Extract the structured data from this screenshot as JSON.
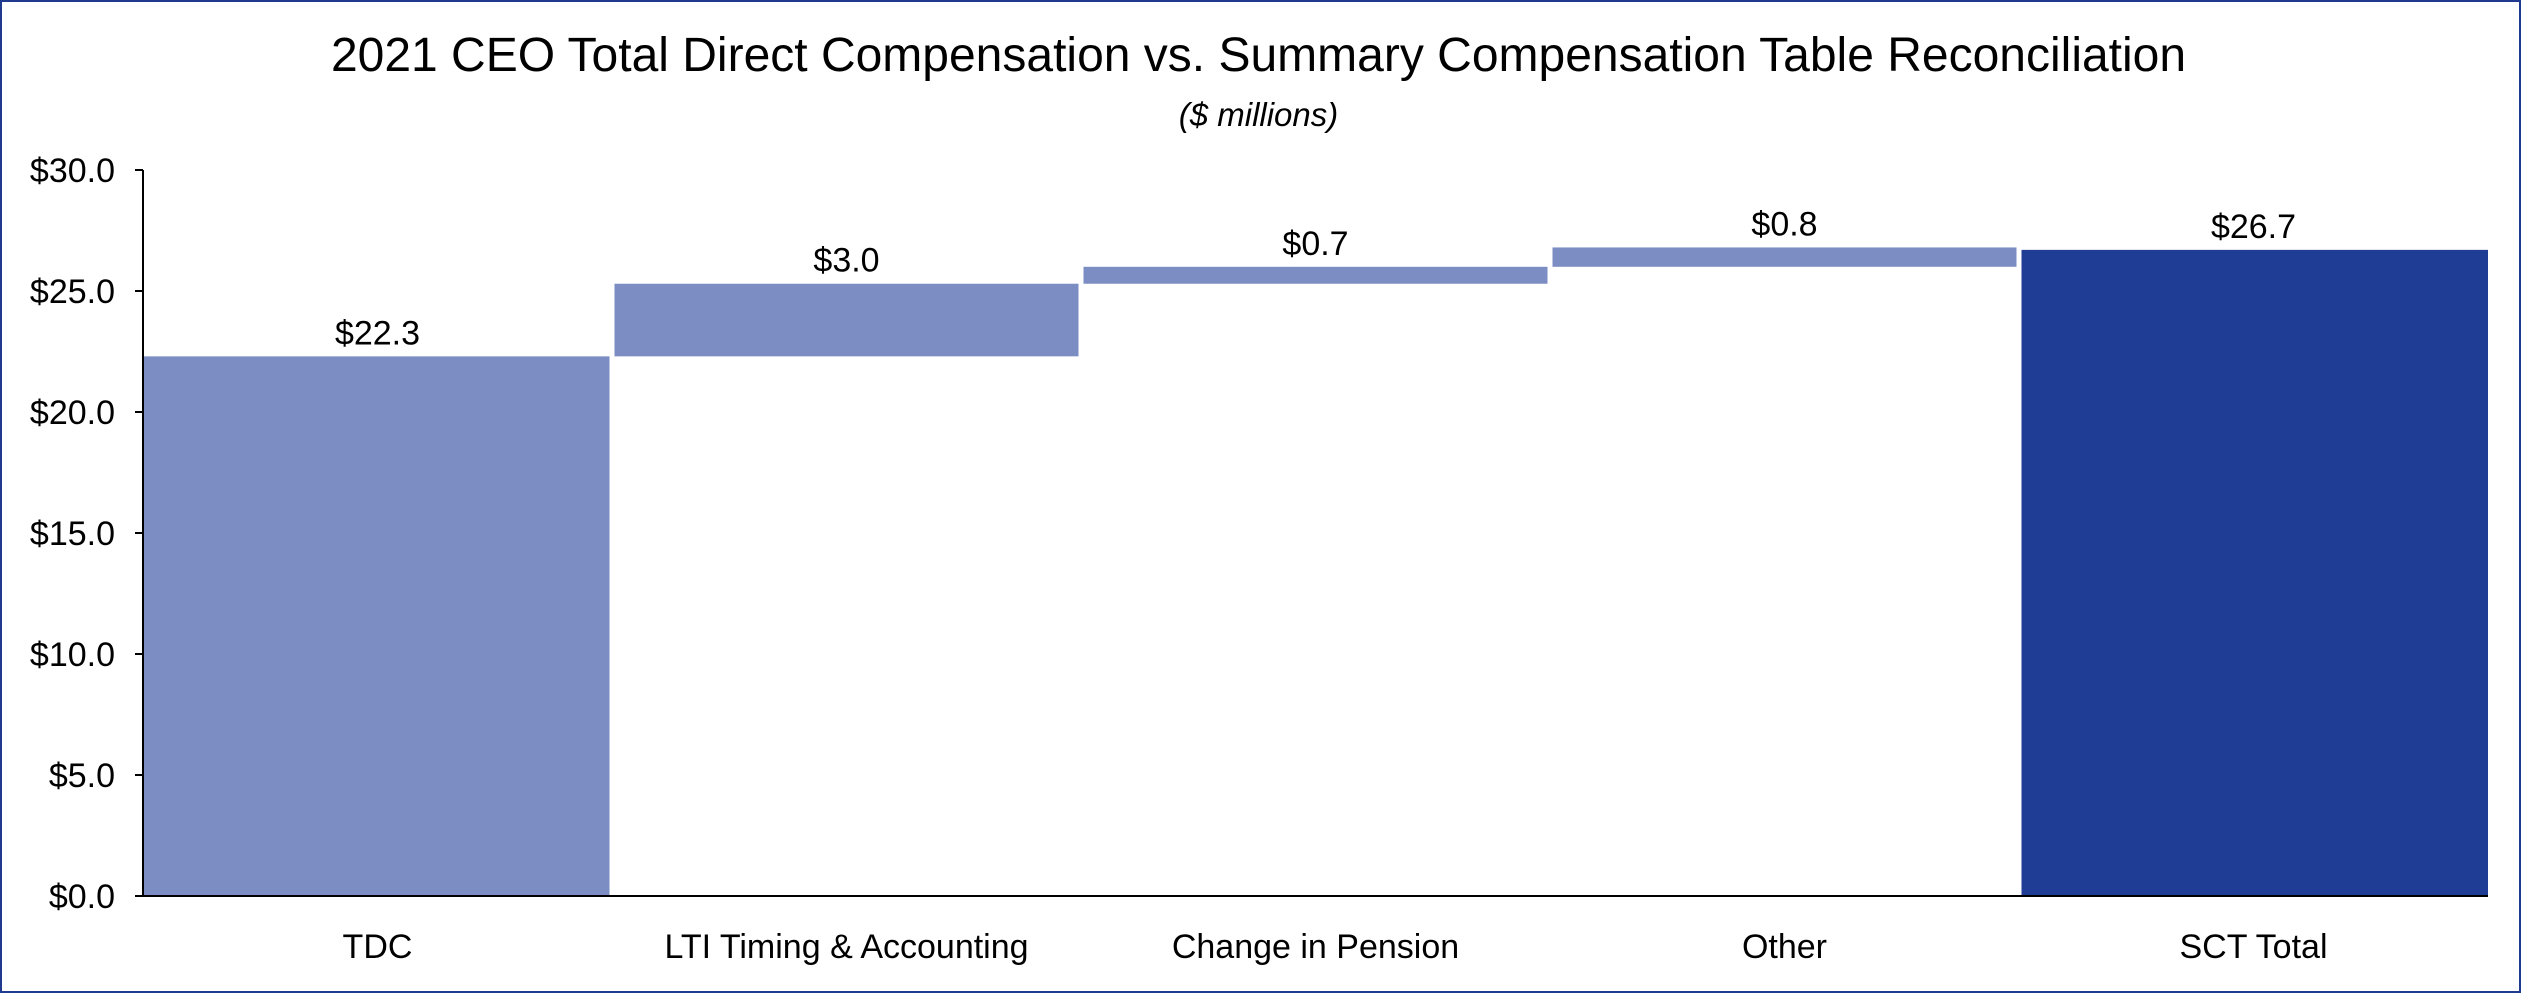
{
  "chart_data": {
    "type": "bar",
    "subtype": "waterfall",
    "title": "2021 CEO Total Direct Compensation vs. Summary Compensation Table Reconciliation",
    "subtitle": "($ millions)",
    "xlabel": "",
    "ylabel": "",
    "ylim": [
      0,
      30
    ],
    "yticks": [
      0,
      5,
      10,
      15,
      20,
      25,
      30
    ],
    "ytick_labels": [
      "$0.0",
      "$5.0",
      "$10.0",
      "$15.0",
      "$20.0",
      "$25.0",
      "$30.0"
    ],
    "categories": [
      "TDC",
      "LTI Timing & Accounting",
      "Change in Pension",
      "Other",
      "SCT Total"
    ],
    "values": [
      22.3,
      3.0,
      0.7,
      0.8,
      26.7
    ],
    "value_labels": [
      "$22.3",
      "$3.0",
      "$0.7",
      "$0.8",
      "$26.7"
    ],
    "bar_kinds": [
      "total",
      "increment",
      "increment",
      "increment",
      "total"
    ],
    "grid": false,
    "legend": "none",
    "colors": {
      "increment": "#7b8dc3",
      "start_total": "#7b8dc3",
      "end_total": "#1f3d94",
      "frame": "#1f3a8f",
      "axis": "#000000"
    }
  }
}
